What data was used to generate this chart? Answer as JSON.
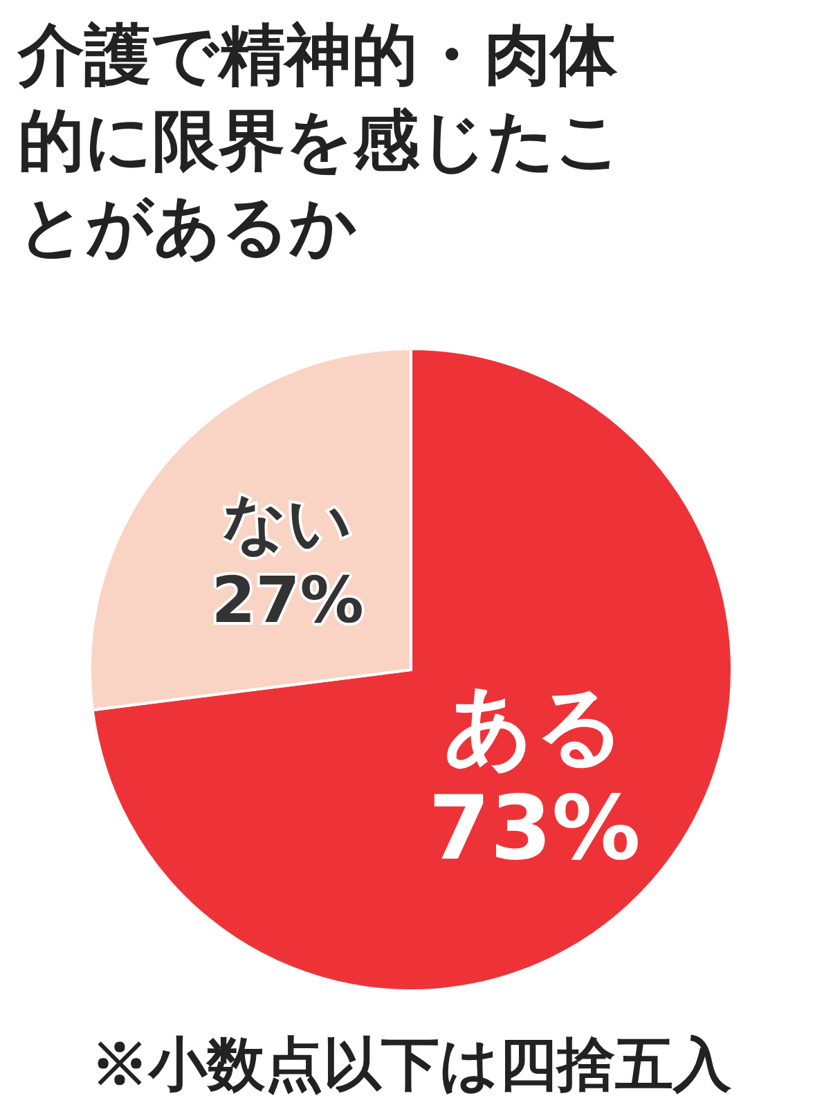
{
  "chart_data": {
    "type": "pie",
    "title": "介護で精神的・肉体的に限界を感じたことがあるか",
    "categories": [
      "ある",
      "ない"
    ],
    "values": [
      73,
      27
    ],
    "colors": [
      "#ee3338",
      "#f9d3c3"
    ],
    "value_labels": [
      "73%",
      "27%"
    ],
    "legend": false,
    "annotations": [
      "※小数点以下は四捨五入"
    ]
  }
}
